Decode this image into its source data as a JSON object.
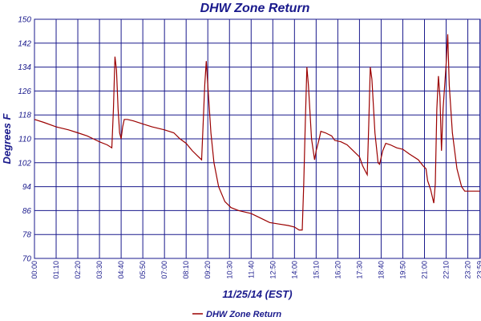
{
  "chart_data": {
    "type": "line",
    "title": "DHW Zone Return",
    "xlabel": "11/25/14 (EST)",
    "ylabel": "Degrees F",
    "ylim": [
      70,
      150
    ],
    "yticks": [
      70,
      78,
      86,
      94,
      102,
      110,
      118,
      126,
      134,
      142,
      150
    ],
    "xlim_minutes": [
      0,
      1440
    ],
    "xtick_labels": [
      "00:00",
      "01:10",
      "02:20",
      "03:30",
      "04:40",
      "05:50",
      "07:00",
      "08:10",
      "09:20",
      "10:30",
      "11:40",
      "12:50",
      "14:00",
      "15:10",
      "16:20",
      "17:30",
      "18:40",
      "19:50",
      "21:00",
      "22:10",
      "23:20",
      "23:59"
    ],
    "grid": true,
    "legend_position": "bottom-center",
    "colors": {
      "series": "#9b0000",
      "grid": "#1a1a8c",
      "text": "#1a1a8c"
    },
    "series": [
      {
        "name": "DHW Zone Return",
        "points": [
          [
            "00:00",
            116.5
          ],
          [
            "00:30",
            115.5
          ],
          [
            "01:10",
            114
          ],
          [
            "01:50",
            113
          ],
          [
            "02:20",
            112
          ],
          [
            "02:50",
            111
          ],
          [
            "03:10",
            110
          ],
          [
            "03:30",
            109
          ],
          [
            "03:55",
            108
          ],
          [
            "04:10",
            107
          ],
          [
            "04:15",
            120
          ],
          [
            "04:20",
            137.5
          ],
          [
            "04:25",
            133
          ],
          [
            "04:30",
            120
          ],
          [
            "04:35",
            112
          ],
          [
            "04:40",
            110
          ],
          [
            "04:45",
            114
          ],
          [
            "04:50",
            116.5
          ],
          [
            "05:00",
            116.5
          ],
          [
            "05:20",
            116
          ],
          [
            "05:50",
            115
          ],
          [
            "06:20",
            114
          ],
          [
            "07:00",
            113
          ],
          [
            "07:30",
            112
          ],
          [
            "07:50",
            110
          ],
          [
            "08:10",
            108.5
          ],
          [
            "08:30",
            106
          ],
          [
            "08:50",
            104
          ],
          [
            "09:00",
            103
          ],
          [
            "09:05",
            115
          ],
          [
            "09:10",
            128
          ],
          [
            "09:15",
            136
          ],
          [
            "09:20",
            128
          ],
          [
            "09:30",
            112
          ],
          [
            "09:40",
            102
          ],
          [
            "09:55",
            94
          ],
          [
            "10:15",
            89
          ],
          [
            "10:35",
            87
          ],
          [
            "11:00",
            86
          ],
          [
            "11:40",
            85
          ],
          [
            "12:10",
            83.5
          ],
          [
            "12:40",
            82
          ],
          [
            "13:10",
            81.5
          ],
          [
            "13:40",
            81
          ],
          [
            "14:00",
            80.5
          ],
          [
            "14:15",
            79.5
          ],
          [
            "14:25",
            79.5
          ],
          [
            "14:30",
            95
          ],
          [
            "14:35",
            115
          ],
          [
            "14:40",
            134
          ],
          [
            "14:45",
            128
          ],
          [
            "14:55",
            110
          ],
          [
            "15:05",
            103
          ],
          [
            "15:10",
            106
          ],
          [
            "15:20",
            110
          ],
          [
            "15:25",
            112.5
          ],
          [
            "15:40",
            112
          ],
          [
            "16:00",
            111
          ],
          [
            "16:10",
            109.5
          ],
          [
            "16:30",
            109
          ],
          [
            "16:50",
            108
          ],
          [
            "17:10",
            106
          ],
          [
            "17:30",
            104
          ],
          [
            "17:40",
            101
          ],
          [
            "17:50",
            99
          ],
          [
            "17:55",
            98
          ],
          [
            "18:00",
            115
          ],
          [
            "18:05",
            134
          ],
          [
            "18:10",
            130
          ],
          [
            "18:20",
            112
          ],
          [
            "18:30",
            102
          ],
          [
            "18:35",
            101.5
          ],
          [
            "18:45",
            106
          ],
          [
            "18:55",
            108.5
          ],
          [
            "19:10",
            108
          ],
          [
            "19:30",
            107
          ],
          [
            "19:50",
            106.5
          ],
          [
            "20:10",
            105
          ],
          [
            "20:40",
            103
          ],
          [
            "20:55",
            101
          ],
          [
            "21:05",
            100
          ],
          [
            "21:10",
            96
          ],
          [
            "21:20",
            93
          ],
          [
            "21:30",
            88.5
          ],
          [
            "21:35",
            95
          ],
          [
            "21:40",
            120
          ],
          [
            "21:45",
            131
          ],
          [
            "21:50",
            124
          ],
          [
            "21:55",
            106
          ],
          [
            "22:00",
            120
          ],
          [
            "22:10",
            135
          ],
          [
            "22:15",
            145
          ],
          [
            "22:20",
            128
          ],
          [
            "22:30",
            112
          ],
          [
            "22:45",
            100
          ],
          [
            "23:00",
            94
          ],
          [
            "23:10",
            92.5
          ],
          [
            "23:20",
            92.5
          ],
          [
            "23:59",
            92.5
          ]
        ]
      }
    ]
  }
}
